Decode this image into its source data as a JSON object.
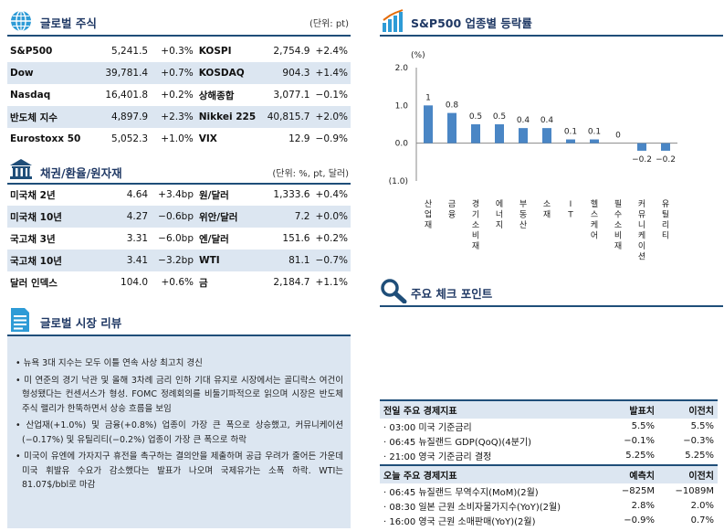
{
  "global_stocks": {
    "title": "글로벌 주식",
    "unit": "(단위: pt)",
    "rows": [
      {
        "name1": "S&P500",
        "val1": "5,241.5",
        "chg1": "+0.3%",
        "name2": "KOSPI",
        "val2": "2,754.9",
        "chg2": "+2.4%"
      },
      {
        "name1": "Dow",
        "val1": "39,781.4",
        "chg1": "+0.7%",
        "name2": "KOSDAQ",
        "val2": "904.3",
        "chg2": "+1.4%"
      },
      {
        "name1": "Nasdaq",
        "val1": "16,401.8",
        "chg1": "+0.2%",
        "name2": "상해종합",
        "val2": "3,077.1",
        "chg2": "−0.1%"
      },
      {
        "name1": "반도체 지수",
        "val1": "4,897.9",
        "chg1": "+2.3%",
        "name2": "Nikkei 225",
        "val2": "40,815.7",
        "chg2": "+2.0%"
      },
      {
        "name1": "Eurostoxx 50",
        "val1": "5,052.3",
        "chg1": "+1.0%",
        "name2": "VIX",
        "val2": "12.9",
        "chg2": "−0.9%"
      }
    ]
  },
  "bonds_fx": {
    "title": "채권/환율/원자재",
    "unit": "(단위: %, pt, 달러)",
    "rows": [
      {
        "name1": "미국채 2년",
        "val1": "4.64",
        "chg1": "+3.4bp",
        "name2": "원/달러",
        "val2": "1,333.6",
        "chg2": "+0.4%"
      },
      {
        "name1": "미국채 10년",
        "val1": "4.27",
        "chg1": "−0.6bp",
        "name2": "위안/달러",
        "val2": "7.2",
        "chg2": "+0.0%"
      },
      {
        "name1": "국고채 3년",
        "val1": "3.31",
        "chg1": "−6.0bp",
        "name2": "엔/달러",
        "val2": "151.6",
        "chg2": "+0.2%"
      },
      {
        "name1": "국고채 10년",
        "val1": "3.41",
        "chg1": "−3.2bp",
        "name2": "WTI",
        "val2": "81.1",
        "chg2": "−0.7%"
      },
      {
        "name1": "달러 인덱스",
        "val1": "104.0",
        "chg1": "+0.6%",
        "name2": "금",
        "val2": "2,184.7",
        "chg2": "+1.1%"
      }
    ]
  },
  "review": {
    "title": "글로벌 시장 리뷰",
    "bullets": [
      "• 뉴욕 3대 지수는 모두 이틀 연속 사상 최고치 경신",
      "• 미 연준의 경기 낙관 및 올해 3차례 금리 인하 기대 유지로 시장에서는 골디락스 여건이 형성됐다는 컨센서스가 형성. FOMC 정례회의를 비둘기파적으로 읽으며 시장은 반도체 주식 랠리가 한뚝하면서 상승 흐름을 보임",
      "• 산업재(+1.0%) 및 금융(+0.8%) 업종이 가장 큰 폭으로 상승했고, 커뮤니케이션(−0.17%) 및 유틸리티(−0.2%) 업종이 가장 큰 폭으로 하락",
      "• 미국이 유엔에 가자지구 휴전을 촉구하는 결의안을 제출하며 공급 우려가 줄어든 가운데 미국 휘발유 수요가 감소했다는 발표가 나오며 국제유가는 소폭 하락. WTI는 81.07$/bbl로 마감"
    ]
  },
  "sector": {
    "title": "S&P500 업종별 등락률"
  },
  "chart_data": {
    "type": "bar",
    "title": "S&P500 업종별 등락률",
    "ylabel": "(%)",
    "ylim": [
      -1.0,
      2.0
    ],
    "yticks": [
      "2.0",
      "1.0",
      "0.0",
      "(1.0)"
    ],
    "categories": [
      "산업재",
      "금융",
      "경기소비재",
      "에너지",
      "부동산",
      "소재",
      "IT",
      "헬스케어",
      "필수소비재",
      "커뮤니케이션",
      "유틸리티"
    ],
    "values": [
      1.0,
      0.8,
      0.5,
      0.5,
      0.4,
      0.4,
      0.1,
      0.1,
      0.0,
      -0.2,
      -0.2
    ],
    "labels": [
      "1",
      "0.8",
      "0.5",
      "0.5",
      "0.4",
      "0.4",
      "0.1",
      "0.1",
      "0",
      "−0.2",
      "−0.2"
    ],
    "bar_color": "#4a86c5"
  },
  "checkpoint": {
    "title": "주요 체크 포인트"
  },
  "events_prev": {
    "header": [
      "전일 주요 경제지표",
      "발표치",
      "이전치"
    ],
    "rows": [
      [
        "· 03:00 미국 기준금리",
        "5.5%",
        "5.5%"
      ],
      [
        "· 06:45 뉴질랜드 GDP(QoQ)(4분기)",
        "−0.1%",
        "−0.3%"
      ],
      [
        "· 21:00 영국 기준금리 결정",
        "5.25%",
        "5.25%"
      ]
    ]
  },
  "events_today": {
    "header": [
      "오늘 주요 경제지표",
      "예측치",
      "이전치"
    ],
    "rows": [
      [
        "· 06:45 뉴질랜드 무역수지(MoM)(2월)",
        "−825M",
        "−1089M"
      ],
      [
        "· 08:30 일본 근원 소비자물가지수(YoY)(2월)",
        "2.8%",
        "2.0%"
      ],
      [
        "· 16:00 영국 근원 소매판매(YoY)(2월)",
        "−0.9%",
        "0.7%"
      ]
    ]
  },
  "colors": {
    "accent": "#1f4e79",
    "band": "#dce6f1",
    "icon_teal": "#2e9bd6"
  }
}
